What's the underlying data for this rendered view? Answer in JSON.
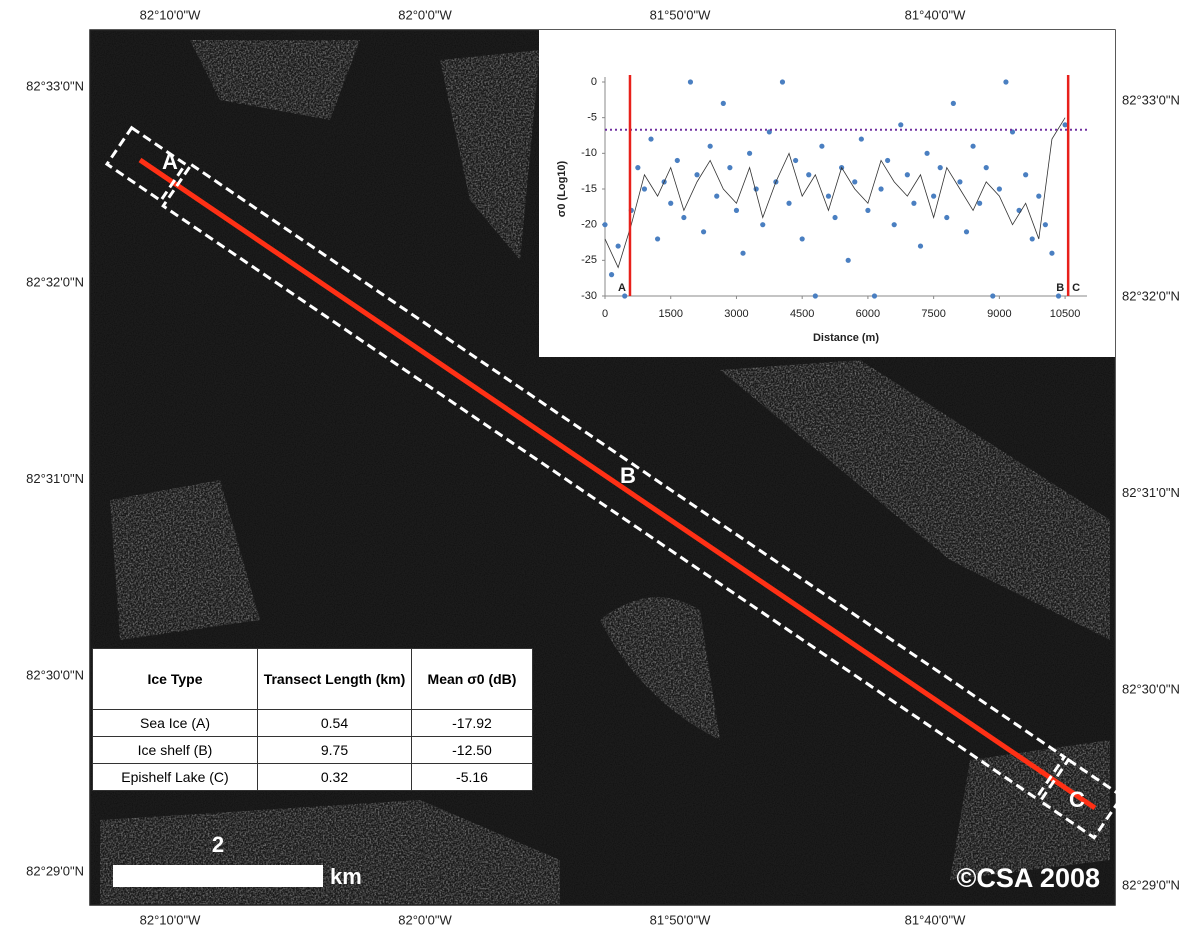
{
  "map": {
    "lon_labels": [
      "82°10'0\"W",
      "82°0'0\"W",
      "81°50'0\"W",
      "81°40'0\"W"
    ],
    "lat_labels": [
      "82°33'0\"N",
      "82°32'0\"N",
      "82°31'0\"N",
      "82°30'0\"N",
      "82°29'0\"N"
    ],
    "points": [
      "A",
      "B",
      "C"
    ],
    "scale_value": "2",
    "scale_unit": "km",
    "copyright": "©CSA 2008"
  },
  "table": {
    "header": [
      "Ice Type",
      "Transect Length (km)",
      "Mean σ0 (dB)"
    ],
    "rows": [
      [
        "Sea Ice (A)",
        "0.54",
        "-17.92"
      ],
      [
        "Ice shelf (B)",
        "9.75",
        "-12.50"
      ],
      [
        "Epishelf Lake (C)",
        "0.32",
        "-5.16"
      ]
    ]
  },
  "chart_data": {
    "type": "scatter",
    "y_label": "σ0 (Log10)",
    "x_label": "Distance (m)",
    "xlim": [
      0,
      11000
    ],
    "xticks": [
      0,
      1500,
      3000,
      4500,
      6000,
      7500,
      9000,
      10500
    ],
    "ylim": [
      -30,
      0
    ],
    "yticks": [
      0,
      -5,
      -10,
      -15,
      -20,
      -25,
      -30
    ],
    "threshold": -6.7,
    "threshold_color": "#7030a0",
    "boundary_color": "#e8201a",
    "boundaries": [
      {
        "x": 570,
        "labels": [
          "A"
        ]
      },
      {
        "x": 10570,
        "labels": [
          "B",
          "C"
        ]
      }
    ],
    "series": [
      {
        "style": "points",
        "color": "#4a7fc1",
        "x": [
          0,
          150,
          300,
          450,
          600,
          750,
          900,
          1050,
          1200,
          1350,
          1500,
          1650,
          1800,
          1950,
          2100,
          2250,
          2400,
          2550,
          2700,
          2850,
          3000,
          3150,
          3300,
          3450,
          3600,
          3750,
          3900,
          4050,
          4200,
          4350,
          4500,
          4650,
          4800,
          4950,
          5100,
          5250,
          5400,
          5550,
          5700,
          5850,
          6000,
          6150,
          6300,
          6450,
          6600,
          6750,
          6900,
          7050,
          7200,
          7350,
          7500,
          7650,
          7800,
          7950,
          8100,
          8250,
          8400,
          8550,
          8700,
          8850,
          9000,
          9150,
          9300,
          9450,
          9600,
          9750,
          9900,
          10050,
          10200,
          10350,
          10500
        ],
        "values": [
          -20,
          -27,
          -23,
          -30,
          -18,
          -12,
          -15,
          -8,
          -22,
          -14,
          -17,
          -11,
          -19,
          0,
          -13,
          -21,
          -9,
          -16,
          -3,
          -12,
          -18,
          -24,
          -10,
          -15,
          -20,
          -7,
          -14,
          0,
          -17,
          -11,
          -22,
          -13,
          -30,
          -9,
          -16,
          -19,
          -12,
          -25,
          -14,
          -8,
          -18,
          -30,
          -15,
          -11,
          -20,
          -6,
          -13,
          -17,
          -23,
          -10,
          -16,
          -12,
          -19,
          -3,
          -14,
          -21,
          -9,
          -17,
          -12,
          -30,
          -15,
          0,
          -7,
          -18,
          -13,
          -22,
          -16,
          -20,
          -24,
          -30,
          -6
        ]
      },
      {
        "style": "line",
        "color": "#333333",
        "x": [
          0,
          300,
          600,
          900,
          1200,
          1500,
          1800,
          2100,
          2400,
          2700,
          3000,
          3300,
          3600,
          3900,
          4200,
          4500,
          4800,
          5100,
          5400,
          5700,
          6000,
          6300,
          6600,
          6900,
          7200,
          7500,
          7800,
          8100,
          8400,
          8700,
          9000,
          9300,
          9600,
          9900,
          10200,
          10500
        ],
        "values": [
          -22,
          -26,
          -20,
          -13,
          -16,
          -12,
          -18,
          -14,
          -11,
          -15,
          -17,
          -12,
          -19,
          -14,
          -10,
          -16,
          -13,
          -18,
          -12,
          -15,
          -17,
          -11,
          -14,
          -16,
          -13,
          -19,
          -12,
          -15,
          -18,
          -14,
          -16,
          -20,
          -17,
          -22,
          -8,
          -5
        ]
      }
    ]
  }
}
